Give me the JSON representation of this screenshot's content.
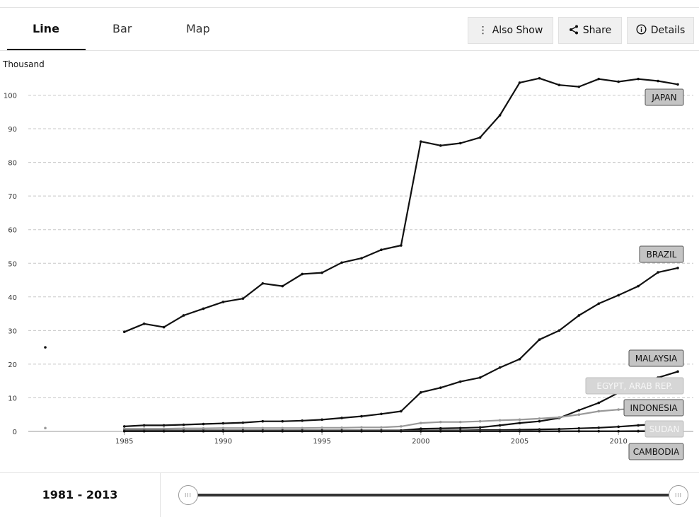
{
  "tabs": [
    {
      "label": "Line",
      "active": true
    },
    {
      "label": "Bar",
      "active": false
    },
    {
      "label": "Map",
      "active": false
    }
  ],
  "buttons": {
    "also_show": {
      "label": "Also Show",
      "icon": "vertical-ellipsis-icon"
    },
    "share": {
      "label": "Share",
      "icon": "share-icon"
    },
    "details": {
      "label": "Details",
      "icon": "info-icon"
    }
  },
  "year_range": {
    "label": "1981 - 2013",
    "start": 1981,
    "end": 2013
  },
  "slider": {
    "handle_glyph": "III"
  },
  "chart_data": {
    "type": "line",
    "ylabel": "Thousand",
    "xlim": [
      1981,
      2013
    ],
    "ylim": [
      0,
      105
    ],
    "xticks": [
      1985,
      1990,
      1995,
      2000,
      2005,
      2010
    ],
    "yticks": [
      0,
      10,
      20,
      30,
      40,
      50,
      60,
      70,
      80,
      90,
      100
    ],
    "grid": true,
    "series": [
      {
        "name": "JAPAN",
        "color": "#111111",
        "label_style": "dark",
        "points": [
          [
            1981,
            25
          ],
          [
            1985,
            29.6
          ],
          [
            1986,
            32
          ],
          [
            1987,
            31
          ],
          [
            1988,
            34.5
          ],
          [
            1989,
            36.5
          ],
          [
            1990,
            38.5
          ],
          [
            1991,
            39.5
          ],
          [
            1992,
            44
          ],
          [
            1993,
            43.2
          ],
          [
            1994,
            46.8
          ],
          [
            1995,
            47.2
          ],
          [
            1996,
            50.2
          ],
          [
            1997,
            51.5
          ],
          [
            1998,
            54
          ],
          [
            1999,
            55.3
          ],
          [
            2000,
            86.2
          ],
          [
            2001,
            85
          ],
          [
            2002,
            85.7
          ],
          [
            2003,
            87.4
          ],
          [
            2004,
            94
          ],
          [
            2005,
            103.7
          ],
          [
            2006,
            105
          ],
          [
            2007,
            103
          ],
          [
            2008,
            102.5
          ],
          [
            2009,
            104.8
          ],
          [
            2010,
            104
          ],
          [
            2011,
            104.8
          ],
          [
            2012,
            104.2
          ],
          [
            2013,
            103.2
          ]
        ]
      },
      {
        "name": "BRAZIL",
        "color": "#111111",
        "label_style": "dark",
        "points": [
          [
            1985,
            1.5
          ],
          [
            1986,
            1.8
          ],
          [
            1987,
            1.8
          ],
          [
            1988,
            2
          ],
          [
            1989,
            2.2
          ],
          [
            1990,
            2.4
          ],
          [
            1991,
            2.6
          ],
          [
            1992,
            3
          ],
          [
            1993,
            3
          ],
          [
            1994,
            3.2
          ],
          [
            1995,
            3.5
          ],
          [
            1996,
            4
          ],
          [
            1997,
            4.5
          ],
          [
            1998,
            5.2
          ],
          [
            1999,
            6
          ],
          [
            2000,
            11.6
          ],
          [
            2001,
            13
          ],
          [
            2002,
            14.8
          ],
          [
            2003,
            16
          ],
          [
            2004,
            19
          ],
          [
            2005,
            21.5
          ],
          [
            2006,
            27.3
          ],
          [
            2007,
            30
          ],
          [
            2008,
            34.5
          ],
          [
            2009,
            38
          ],
          [
            2010,
            40.5
          ],
          [
            2011,
            43.2
          ],
          [
            2012,
            47.3
          ],
          [
            2013,
            48.6
          ]
        ]
      },
      {
        "name": "MALAYSIA",
        "color": "#111111",
        "label_style": "dark",
        "points": [
          [
            1985,
            0.3
          ],
          [
            1986,
            0.3
          ],
          [
            1987,
            0.3
          ],
          [
            1988,
            0.3
          ],
          [
            1989,
            0.3
          ],
          [
            1990,
            0.3
          ],
          [
            1991,
            0.3
          ],
          [
            1992,
            0.3
          ],
          [
            1993,
            0.3
          ],
          [
            1994,
            0.3
          ],
          [
            1995,
            0.3
          ],
          [
            1996,
            0.3
          ],
          [
            1997,
            0.3
          ],
          [
            1998,
            0.3
          ],
          [
            1999,
            0.3
          ],
          [
            2000,
            0.8
          ],
          [
            2001,
            0.9
          ],
          [
            2002,
            1
          ],
          [
            2003,
            1.2
          ],
          [
            2004,
            1.8
          ],
          [
            2005,
            2.5
          ],
          [
            2006,
            3
          ],
          [
            2007,
            4
          ],
          [
            2008,
            6.3
          ],
          [
            2009,
            8.5
          ],
          [
            2010,
            11.5
          ],
          [
            2011,
            14.5
          ],
          [
            2012,
            16
          ],
          [
            2013,
            17.8
          ]
        ]
      },
      {
        "name": "EGYPT, ARAB REP.",
        "color": "#999999",
        "label_style": "light",
        "points": [
          [
            1981,
            1
          ],
          [
            1985,
            0.8
          ],
          [
            1986,
            0.8
          ],
          [
            1987,
            0.8
          ],
          [
            1988,
            0.9
          ],
          [
            1989,
            0.9
          ],
          [
            1990,
            1
          ],
          [
            1991,
            1
          ],
          [
            1992,
            1
          ],
          [
            1993,
            1
          ],
          [
            1994,
            1
          ],
          [
            1995,
            1.1
          ],
          [
            1996,
            1.1
          ],
          [
            1997,
            1.2
          ],
          [
            1998,
            1.2
          ],
          [
            1999,
            1.5
          ],
          [
            2000,
            2.5
          ],
          [
            2001,
            2.8
          ],
          [
            2002,
            2.8
          ],
          [
            2003,
            3
          ],
          [
            2004,
            3.3
          ],
          [
            2005,
            3.5
          ],
          [
            2006,
            3.8
          ],
          [
            2007,
            4.2
          ],
          [
            2008,
            5
          ],
          [
            2009,
            6
          ],
          [
            2010,
            6.5
          ],
          [
            2011,
            6.8
          ],
          [
            2012,
            7
          ],
          [
            2013,
            7.2
          ]
        ]
      },
      {
        "name": "INDONESIA",
        "color": "#111111",
        "label_style": "dark",
        "points": [
          [
            1985,
            0.2
          ],
          [
            1986,
            0.2
          ],
          [
            1987,
            0.2
          ],
          [
            1988,
            0.2
          ],
          [
            1989,
            0.2
          ],
          [
            1990,
            0.2
          ],
          [
            1991,
            0.2
          ],
          [
            1992,
            0.2
          ],
          [
            1993,
            0.2
          ],
          [
            1994,
            0.2
          ],
          [
            1995,
            0.2
          ],
          [
            1996,
            0.2
          ],
          [
            1997,
            0.2
          ],
          [
            1998,
            0.2
          ],
          [
            1999,
            0.2
          ],
          [
            2000,
            0.3
          ],
          [
            2001,
            0.3
          ],
          [
            2002,
            0.3
          ],
          [
            2003,
            0.4
          ],
          [
            2004,
            0.4
          ],
          [
            2005,
            0.5
          ],
          [
            2006,
            0.6
          ],
          [
            2007,
            0.7
          ],
          [
            2008,
            0.9
          ],
          [
            2009,
            1.1
          ],
          [
            2010,
            1.4
          ],
          [
            2011,
            1.8
          ],
          [
            2012,
            2.2
          ],
          [
            2013,
            2.8
          ]
        ]
      },
      {
        "name": "SUDAN",
        "color": "#999999",
        "label_style": "light",
        "points": [
          [
            1985,
            0.1
          ],
          [
            1986,
            0.1
          ],
          [
            1987,
            0.1
          ],
          [
            1988,
            0.1
          ],
          [
            1989,
            0.1
          ],
          [
            1990,
            0.1
          ],
          [
            1991,
            0.1
          ],
          [
            1992,
            0.1
          ],
          [
            1993,
            0.1
          ],
          [
            1994,
            0.1
          ],
          [
            1995,
            0.1
          ],
          [
            1996,
            0.1
          ],
          [
            1997,
            0.1
          ],
          [
            1998,
            0.1
          ],
          [
            1999,
            0.1
          ],
          [
            2000,
            0.1
          ],
          [
            2001,
            0.1
          ],
          [
            2002,
            0.1
          ],
          [
            2003,
            0.1
          ],
          [
            2004,
            0.1
          ],
          [
            2005,
            0.1
          ],
          [
            2006,
            0.1
          ],
          [
            2007,
            0.1
          ],
          [
            2008,
            0.1
          ],
          [
            2009,
            0.1
          ],
          [
            2010,
            0.1
          ],
          [
            2011,
            0.2
          ],
          [
            2012,
            0.3
          ],
          [
            2013,
            0.4
          ]
        ]
      },
      {
        "name": "CAMBODIA",
        "color": "#111111",
        "label_style": "dark",
        "points": [
          [
            1985,
            0.05
          ],
          [
            1986,
            0.05
          ],
          [
            1987,
            0.05
          ],
          [
            1988,
            0.05
          ],
          [
            1989,
            0.05
          ],
          [
            1990,
            0.05
          ],
          [
            1991,
            0.05
          ],
          [
            1992,
            0.05
          ],
          [
            1993,
            0.05
          ],
          [
            1994,
            0.05
          ],
          [
            1995,
            0.05
          ],
          [
            1996,
            0.05
          ],
          [
            1997,
            0.05
          ],
          [
            1998,
            0.05
          ],
          [
            1999,
            0.05
          ],
          [
            2000,
            0.05
          ],
          [
            2001,
            0.05
          ],
          [
            2002,
            0.05
          ],
          [
            2003,
            0.05
          ],
          [
            2004,
            0.05
          ],
          [
            2005,
            0.05
          ],
          [
            2006,
            0.05
          ],
          [
            2007,
            0.05
          ],
          [
            2008,
            0.05
          ],
          [
            2009,
            0.05
          ],
          [
            2010,
            0.05
          ],
          [
            2011,
            0.05
          ],
          [
            2012,
            0.05
          ],
          [
            2013,
            0.1
          ]
        ]
      }
    ]
  }
}
